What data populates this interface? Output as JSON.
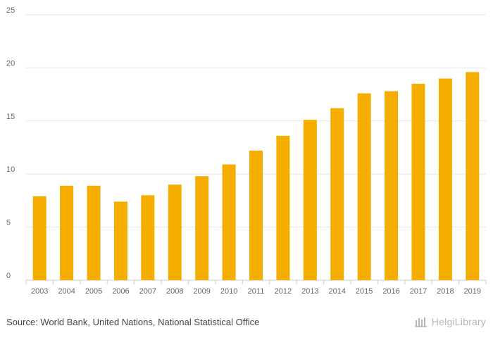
{
  "chart_data": {
    "type": "bar",
    "title": "",
    "xlabel": "",
    "ylabel": "",
    "categories": [
      "2003",
      "2004",
      "2005",
      "2006",
      "2007",
      "2008",
      "2009",
      "2010",
      "2011",
      "2012",
      "2013",
      "2014",
      "2015",
      "2016",
      "2017",
      "2018",
      "2019"
    ],
    "values": [
      7.9,
      8.9,
      8.9,
      7.4,
      8.0,
      9.0,
      9.8,
      10.9,
      12.2,
      13.6,
      15.1,
      16.2,
      17.6,
      17.8,
      18.5,
      19.0,
      19.6
    ],
    "ylim": [
      0,
      25
    ],
    "yticks": [
      0,
      5,
      10,
      15,
      20,
      25
    ],
    "grid": true,
    "color": "#f5ad00"
  },
  "footer": {
    "source": "Source: World Bank, United Nations, National Statistical Office",
    "brand": "HelgiLibrary"
  },
  "colors": {
    "bar": "#f5ad00",
    "grid": "#e6e6e6",
    "text": "#444444"
  }
}
